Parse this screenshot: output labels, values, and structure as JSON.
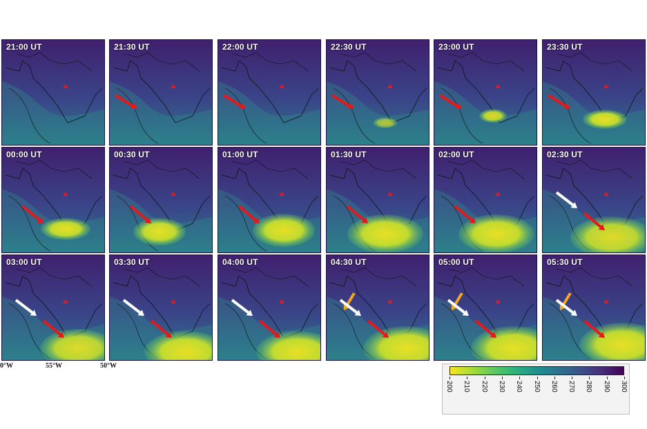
{
  "panels": [
    {
      "time": "21:00 UT",
      "blob": 0,
      "arrows": []
    },
    {
      "time": "21:30 UT",
      "blob": 0,
      "arrows": [
        "red"
      ]
    },
    {
      "time": "22:00 UT",
      "blob": 1,
      "arrows": [
        "red"
      ]
    },
    {
      "time": "22:30 UT",
      "blob": 2,
      "arrows": [
        "red"
      ]
    },
    {
      "time": "23:00 UT",
      "blob": 3,
      "arrows": [
        "red"
      ]
    },
    {
      "time": "23:30 UT",
      "blob": 4,
      "arrows": [
        "red"
      ]
    },
    {
      "time": "00:00 UT",
      "blob": 5,
      "arrows": [
        "red"
      ]
    },
    {
      "time": "00:30 UT",
      "blob": 6,
      "arrows": [
        "red"
      ]
    },
    {
      "time": "01:00 UT",
      "blob": 7,
      "arrows": [
        "red"
      ]
    },
    {
      "time": "01:30 UT",
      "blob": 8,
      "arrows": [
        "red"
      ]
    },
    {
      "time": "02:00 UT",
      "blob": 9,
      "arrows": [
        "red"
      ]
    },
    {
      "time": "02:30 UT",
      "blob": 10,
      "arrows": [
        "white",
        "red"
      ]
    },
    {
      "time": "03:00 UT",
      "blob": 11,
      "arrows": [
        "white",
        "red"
      ]
    },
    {
      "time": "03:30 UT",
      "blob": 12,
      "arrows": [
        "white",
        "red"
      ]
    },
    {
      "time": "04:00 UT",
      "blob": 13,
      "arrows": [
        "white",
        "red"
      ]
    },
    {
      "time": "04:30 UT",
      "blob": 14,
      "arrows": [
        "orange",
        "white",
        "red"
      ]
    },
    {
      "time": "05:00 UT",
      "blob": 15,
      "arrows": [
        "orange",
        "white",
        "red"
      ]
    },
    {
      "time": "05:30 UT",
      "blob": 16,
      "arrows": [
        "orange",
        "white",
        "red"
      ]
    }
  ],
  "longitude_labels": [
    "0°W",
    "55°W",
    "50°W"
  ],
  "colorbar": {
    "ticks": [
      "200",
      "210",
      "220",
      "230",
      "240",
      "250",
      "260",
      "270",
      "280",
      "290",
      "300"
    ],
    "colors": [
      "#f6e620",
      "#a8db34",
      "#5ec962",
      "#2db27d",
      "#21918c",
      "#2c728e",
      "#3b528b",
      "#472d7b",
      "#440154"
    ]
  },
  "colors": {
    "red_arrow": "#e31a1c",
    "white_arrow": "#ffffff",
    "orange_arrow": "#f5a623",
    "marker": "#e31a1c"
  }
}
